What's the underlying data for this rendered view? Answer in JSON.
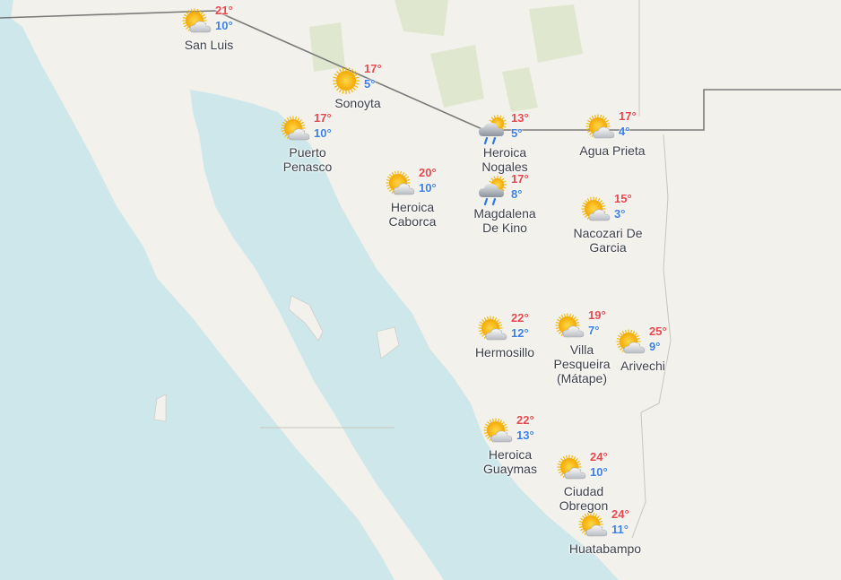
{
  "colors": {
    "sea": "#cde7ea",
    "land": "#f3f1ec",
    "vegetation": "#dfe8cf",
    "border": "#7a7a7a",
    "high_temp": "#e8474b",
    "low_temp": "#3b7fe8",
    "label": "#3a3f48"
  },
  "cities": [
    {
      "name_lines": [
        "San Luis"
      ],
      "high": "21°",
      "low": "10°",
      "icon": "partly-cloudy-icon"
    },
    {
      "name_lines": [
        "Sonoyta"
      ],
      "high": "17°",
      "low": "5°",
      "icon": "sun-icon"
    },
    {
      "name_lines": [
        "Puerto",
        "Penasco"
      ],
      "high": "17°",
      "low": "10°",
      "icon": "partly-cloudy-icon"
    },
    {
      "name_lines": [
        "Heroica",
        "Caborca"
      ],
      "high": "20°",
      "low": "10°",
      "icon": "partly-cloudy-icon"
    },
    {
      "name_lines": [
        "Heroica",
        "Nogales"
      ],
      "high": "13°",
      "low": "5°",
      "icon": "rain-icon"
    },
    {
      "name_lines": [
        "Magdalena",
        "De Kino"
      ],
      "high": "17°",
      "low": "8°",
      "icon": "rain-icon"
    },
    {
      "name_lines": [
        "Agua Prieta"
      ],
      "high": "17°",
      "low": "4°",
      "icon": "partly-cloudy-icon"
    },
    {
      "name_lines": [
        "Nacozari De",
        "Garcia"
      ],
      "high": "15°",
      "low": "3°",
      "icon": "partly-cloudy-icon"
    },
    {
      "name_lines": [
        "Hermosillo"
      ],
      "high": "22°",
      "low": "12°",
      "icon": "partly-cloudy-icon"
    },
    {
      "name_lines": [
        "Villa",
        "Pesqueira",
        "(Mátape)"
      ],
      "high": "19°",
      "low": "7°",
      "icon": "partly-cloudy-icon"
    },
    {
      "name_lines": [
        "Arivechi"
      ],
      "high": "25°",
      "low": "9°",
      "icon": "partly-cloudy-icon"
    },
    {
      "name_lines": [
        "Heroica",
        "Guaymas"
      ],
      "high": "22°",
      "low": "13°",
      "icon": "partly-cloudy-icon"
    },
    {
      "name_lines": [
        "Ciudad",
        "Obregon"
      ],
      "high": "24°",
      "low": "10°",
      "icon": "partly-cloudy-icon"
    },
    {
      "name_lines": [
        "Huatabampo"
      ],
      "high": "24°",
      "low": "11°",
      "icon": "partly-cloudy-icon"
    }
  ]
}
